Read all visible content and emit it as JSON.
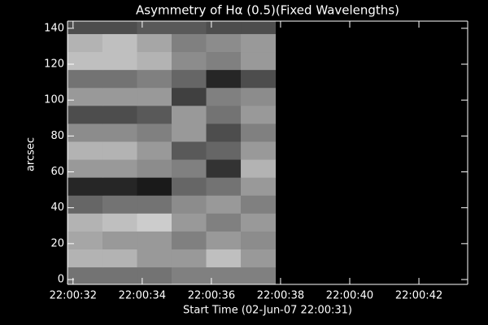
{
  "chart_data": {
    "type": "heatmap",
    "title": "Asymmetry of Hα (0.5)(Fixed Wavelengths)",
    "x_label": "Start Time (02-Jun-07 22:00:31)",
    "y_label": "arcsec",
    "xlim": [
      31.84,
      43.41
    ],
    "ylim": [
      -2.7,
      144
    ],
    "xticks": [
      {
        "value": 32,
        "label": "22:00:32"
      },
      {
        "value": 34,
        "label": "22:00:34"
      },
      {
        "value": 36,
        "label": "22:00:36"
      },
      {
        "value": 38,
        "label": "22:00:38"
      },
      {
        "value": 40,
        "label": "22:00:40"
      },
      {
        "value": 42,
        "label": "22:00:42"
      }
    ],
    "yticks": [
      0,
      20,
      40,
      60,
      80,
      100,
      120,
      140
    ],
    "xbins": [
      31.84,
      32.85,
      33.85,
      34.85,
      35.85,
      36.85,
      37.85
    ],
    "ybins": [
      -2.7,
      7,
      17,
      27,
      37,
      47,
      57,
      67,
      77,
      87,
      97,
      107,
      117,
      127,
      137,
      144
    ],
    "values": [
      [
        0.45,
        0.45,
        0.45,
        0.5,
        0.5,
        0.5
      ],
      [
        0.7,
        0.7,
        0.6,
        0.6,
        0.75,
        0.6
      ],
      [
        0.65,
        0.6,
        0.6,
        0.5,
        0.6,
        0.55
      ],
      [
        0.7,
        0.75,
        0.8,
        0.6,
        0.5,
        0.6
      ],
      [
        0.4,
        0.45,
        0.45,
        0.55,
        0.6,
        0.5
      ],
      [
        0.15,
        0.15,
        0.1,
        0.4,
        0.45,
        0.6
      ],
      [
        0.6,
        0.6,
        0.55,
        0.5,
        0.2,
        0.7
      ],
      [
        0.7,
        0.7,
        0.6,
        0.35,
        0.4,
        0.6
      ],
      [
        0.55,
        0.55,
        0.5,
        0.6,
        0.3,
        0.5
      ],
      [
        0.3,
        0.3,
        0.35,
        0.6,
        0.45,
        0.6
      ],
      [
        0.6,
        0.6,
        0.6,
        0.25,
        0.5,
        0.55
      ],
      [
        0.45,
        0.45,
        0.5,
        0.4,
        0.15,
        0.3
      ],
      [
        0.75,
        0.75,
        0.7,
        0.55,
        0.5,
        0.6
      ],
      [
        0.7,
        0.75,
        0.65,
        0.5,
        0.55,
        0.6
      ],
      [
        0.3,
        0.3,
        0.35,
        0.35,
        0.3,
        0.3
      ]
    ]
  }
}
